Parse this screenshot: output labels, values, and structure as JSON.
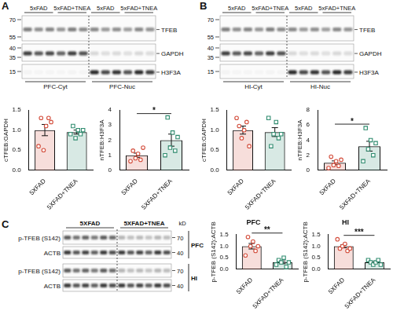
{
  "blots": [
    {
      "panel": "A",
      "groups": [
        "5xFAD",
        "5xFAD+TNEA",
        "5xFAD",
        "5xFAD+TNEA"
      ],
      "rows": [
        {
          "label": "TFEB",
          "kd": [
            70,
            55
          ]
        },
        {
          "label": "GAPDH",
          "kd": [
            40,
            35
          ]
        },
        {
          "label": "H3F3A",
          "kd": [
            15
          ]
        }
      ],
      "sections": [
        "PFC-Cyt",
        "PFC-Nuc"
      ]
    },
    {
      "panel": "B",
      "groups": [
        "5xFAD",
        "5xFAD+TNEA",
        "5xFAD",
        "5xFAD+TNEA"
      ],
      "rows": [
        {
          "label": "TFEB",
          "kd": [
            70,
            55
          ]
        },
        {
          "label": "GAPDH",
          "kd": [
            40,
            35
          ]
        },
        {
          "label": "H3F3A",
          "kd": [
            15
          ]
        }
      ],
      "sections": [
        "HI-Cyt",
        "HI-Nuc"
      ]
    },
    {
      "panel": "C",
      "groups": [
        "5XFAD",
        "5XFAD+TNEA"
      ],
      "unit": "kD",
      "rows": [
        {
          "label": "p-TFEB (S142)",
          "kd": [
            70
          ],
          "region": "PFC"
        },
        {
          "label": "ACTB",
          "kd": [
            40
          ],
          "region": "PFC"
        },
        {
          "label": "p-TFEB (S142)",
          "kd": [
            70
          ],
          "region": "HI"
        },
        {
          "label": "ACTB",
          "kd": [
            40
          ],
          "region": "HI"
        }
      ]
    }
  ],
  "chart_data": [
    {
      "type": "bar",
      "ylabel": "cTFEB:GAPDH",
      "categories": [
        "5XFAD",
        "5XFAD+TNEA"
      ],
      "values": [
        1.0,
        0.95
      ],
      "errors": [
        0.14,
        0.05
      ],
      "points": [
        [
          0.6,
          1.3,
          0.5,
          1.1,
          1.3,
          1.2
        ],
        [
          0.9,
          1.1,
          0.8,
          1.0,
          0.9,
          1.0
        ]
      ],
      "colors": [
        "#d4503f",
        "#2e8b6e"
      ],
      "markers": [
        "circle",
        "rect"
      ],
      "ylim": [
        0,
        1.5
      ],
      "yticks": [
        {
          "value": 0,
          "label": "0.0"
        },
        {
          "value": 0.5,
          "label": "0.5"
        },
        {
          "value": 1,
          "label": "1.0"
        },
        {
          "value": 1.5,
          "label": "1.5"
        }
      ]
    },
    {
      "type": "bar",
      "ylabel": "nTFEB:H3F3A",
      "categories": [
        "5XFAD",
        "5XFAD+TNEA"
      ],
      "values": [
        1.0,
        2.0
      ],
      "errors": [
        0.14,
        0.4
      ],
      "points": [
        [
          0.6,
          1.3,
          0.8,
          1.1,
          0.7,
          1.5
        ],
        [
          1.0,
          3.5,
          1.5,
          2.5,
          1.3,
          2.2
        ]
      ],
      "colors": [
        "#d4503f",
        "#2e8b6e"
      ],
      "markers": [
        "circle",
        "rect"
      ],
      "ylim": [
        0,
        4
      ],
      "yticks": [
        0,
        1,
        2,
        3,
        4
      ],
      "significance": "*"
    },
    {
      "type": "bar",
      "ylabel": "cTFEB:GAPDH",
      "categories": [
        "5XFAD",
        "5XFAD+TNEA"
      ],
      "values": [
        1.0,
        0.95
      ],
      "errors": [
        0.1,
        0.11
      ],
      "points": [
        [
          1.3,
          1.1,
          0.8,
          1.0,
          1.2,
          0.6
        ],
        [
          1.3,
          0.6,
          0.9,
          1.2,
          0.8,
          0.9
        ]
      ],
      "colors": [
        "#d4503f",
        "#2e8b6e"
      ],
      "markers": [
        "circle",
        "rect"
      ],
      "ylim": [
        0,
        1.5
      ],
      "yticks": [
        {
          "value": 0,
          "label": "0.0"
        },
        {
          "value": 0.5,
          "label": "0.5"
        },
        {
          "value": 1,
          "label": "1.0"
        },
        {
          "value": 1.5,
          "label": "1.5"
        }
      ]
    },
    {
      "type": "bar",
      "ylabel": "nTFEB:H3F3A",
      "categories": [
        "5XFAD",
        "5XFAD+TNEA"
      ],
      "values": [
        1.0,
        3.2
      ],
      "errors": [
        0.25,
        0.65
      ],
      "points": [
        [
          0.3,
          1.8,
          0.7,
          1.2,
          0.6,
          1.4
        ],
        [
          1.2,
          5.6,
          2.8,
          4.0,
          2.0,
          3.6
        ]
      ],
      "colors": [
        "#d4503f",
        "#2e8b6e"
      ],
      "markers": [
        "circle",
        "rect"
      ],
      "ylim": [
        0,
        8
      ],
      "yticks": [
        0,
        2,
        4,
        6,
        8
      ],
      "significance": "*"
    },
    {
      "type": "bar",
      "title": "PFC",
      "ylabel": "p-TFEB (S142):ACTB",
      "categories": [
        "5XFAD",
        "5XFAD+TNEA"
      ],
      "values": [
        1.0,
        0.3
      ],
      "errors": [
        0.12,
        0.06
      ],
      "points": [
        [
          0.6,
          1.4,
          1.0,
          1.2,
          0.8,
          1.0
        ],
        [
          0.2,
          0.4,
          0.3,
          0.5,
          0.1,
          0.3
        ]
      ],
      "colors": [
        "#d4503f",
        "#2e8b6e"
      ],
      "markers": [
        "circle",
        "rect"
      ],
      "ylim": [
        0,
        1.5
      ],
      "yticks": [
        {
          "value": 0,
          "label": "0.0"
        },
        {
          "value": 0.5,
          "label": "0.5"
        },
        {
          "value": 1,
          "label": "1.0"
        },
        {
          "value": 1.5,
          "label": "1.5"
        }
      ],
      "significance": "**"
    },
    {
      "type": "bar",
      "title": "HI",
      "ylabel": "p-TFEB (S142):ACTB",
      "categories": [
        "5XFAD",
        "5XFAD+TNEA"
      ],
      "values": [
        1.0,
        0.3
      ],
      "errors": [
        0.07,
        0.03
      ],
      "points": [
        [
          1.3,
          0.9,
          1.0,
          1.1,
          0.8,
          0.9
        ],
        [
          0.4,
          0.3,
          0.2,
          0.3,
          0.4,
          0.2
        ]
      ],
      "colors": [
        "#d4503f",
        "#2e8b6e"
      ],
      "markers": [
        "circle",
        "rect"
      ],
      "ylim": [
        0,
        1.5
      ],
      "yticks": [
        {
          "value": 0,
          "label": "0.0"
        },
        {
          "value": 0.5,
          "label": "0.5"
        },
        {
          "value": 1,
          "label": "1.0"
        },
        {
          "value": 1.5,
          "label": "1.5"
        }
      ],
      "significance": "***"
    }
  ]
}
